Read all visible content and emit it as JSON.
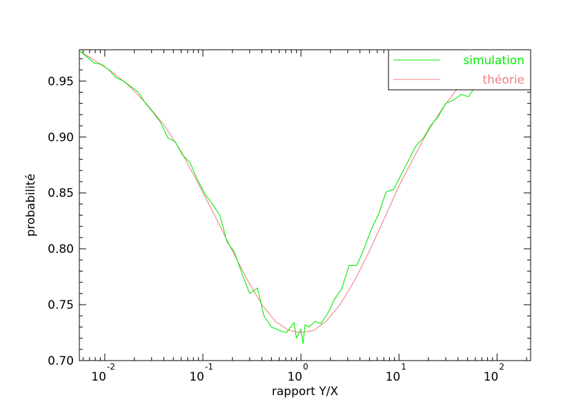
{
  "chart_data": {
    "type": "line",
    "xlabel": "rapport Y/X",
    "ylabel": "probabilité",
    "xscale": "log",
    "xlim": [
      0.0055,
      220
    ],
    "ylim": [
      0.7,
      0.978
    ],
    "yticks": [
      0.7,
      0.75,
      0.8,
      0.85,
      0.9,
      0.95
    ],
    "ytick_labels": [
      "0.70",
      "0.75",
      "0.80",
      "0.85",
      "0.90",
      "0.95"
    ],
    "xticks": [
      {
        "value": 0.01,
        "base": "10",
        "exp": "-2"
      },
      {
        "value": 0.1,
        "base": "10",
        "exp": "-1"
      },
      {
        "value": 1,
        "base": "10",
        "exp": "0"
      },
      {
        "value": 10,
        "base": "10",
        "exp": "1"
      },
      {
        "value": 100,
        "base": "10",
        "exp": "2"
      }
    ],
    "grid": false,
    "legend_position": "top-right",
    "series": [
      {
        "name": "simulation",
        "color": "#00ee00",
        "x": [
          0.0055,
          0.0065,
          0.0078,
          0.0093,
          0.011,
          0.013,
          0.0155,
          0.0185,
          0.022,
          0.026,
          0.031,
          0.037,
          0.044,
          0.052,
          0.062,
          0.074,
          0.088,
          0.105,
          0.125,
          0.149,
          0.177,
          0.21,
          0.25,
          0.3,
          0.36,
          0.42,
          0.5,
          0.6,
          0.71,
          0.85,
          0.9,
          1.0,
          1.05,
          1.1,
          1.2,
          1.4,
          1.6,
          1.9,
          2.2,
          2.6,
          3.1,
          3.7,
          4.4,
          5.2,
          6.2,
          7.4,
          8.8,
          10.5,
          12.5,
          14.9,
          17.7,
          21,
          25,
          30,
          36,
          43,
          51,
          60
        ],
        "y": [
          0.977,
          0.972,
          0.966,
          0.965,
          0.96,
          0.953,
          0.95,
          0.945,
          0.94,
          0.93,
          0.922,
          0.913,
          0.899,
          0.896,
          0.884,
          0.877,
          0.862,
          0.849,
          0.84,
          0.83,
          0.806,
          0.797,
          0.778,
          0.76,
          0.765,
          0.74,
          0.73,
          0.727,
          0.725,
          0.734,
          0.72,
          0.728,
          0.715,
          0.732,
          0.73,
          0.735,
          0.733,
          0.743,
          0.755,
          0.764,
          0.785,
          0.785,
          0.8,
          0.817,
          0.831,
          0.851,
          0.853,
          0.866,
          0.879,
          0.892,
          0.899,
          0.91,
          0.918,
          0.93,
          0.933,
          0.938,
          0.936,
          0.945
        ]
      },
      {
        "name": "théorie",
        "color": "#f08080",
        "x": [
          0.0055,
          0.008,
          0.012,
          0.018,
          0.027,
          0.04,
          0.06,
          0.09,
          0.13,
          0.19,
          0.28,
          0.4,
          0.55,
          0.75,
          1.0,
          1.35,
          1.8,
          2.5,
          3.5,
          5,
          7,
          10,
          14,
          20,
          28,
          40,
          60
        ],
        "y": [
          0.977,
          0.968,
          0.958,
          0.945,
          0.929,
          0.911,
          0.887,
          0.858,
          0.831,
          0.802,
          0.773,
          0.75,
          0.735,
          0.727,
          0.725,
          0.727,
          0.735,
          0.75,
          0.771,
          0.798,
          0.826,
          0.856,
          0.881,
          0.906,
          0.926,
          0.944,
          0.958
        ]
      }
    ]
  }
}
